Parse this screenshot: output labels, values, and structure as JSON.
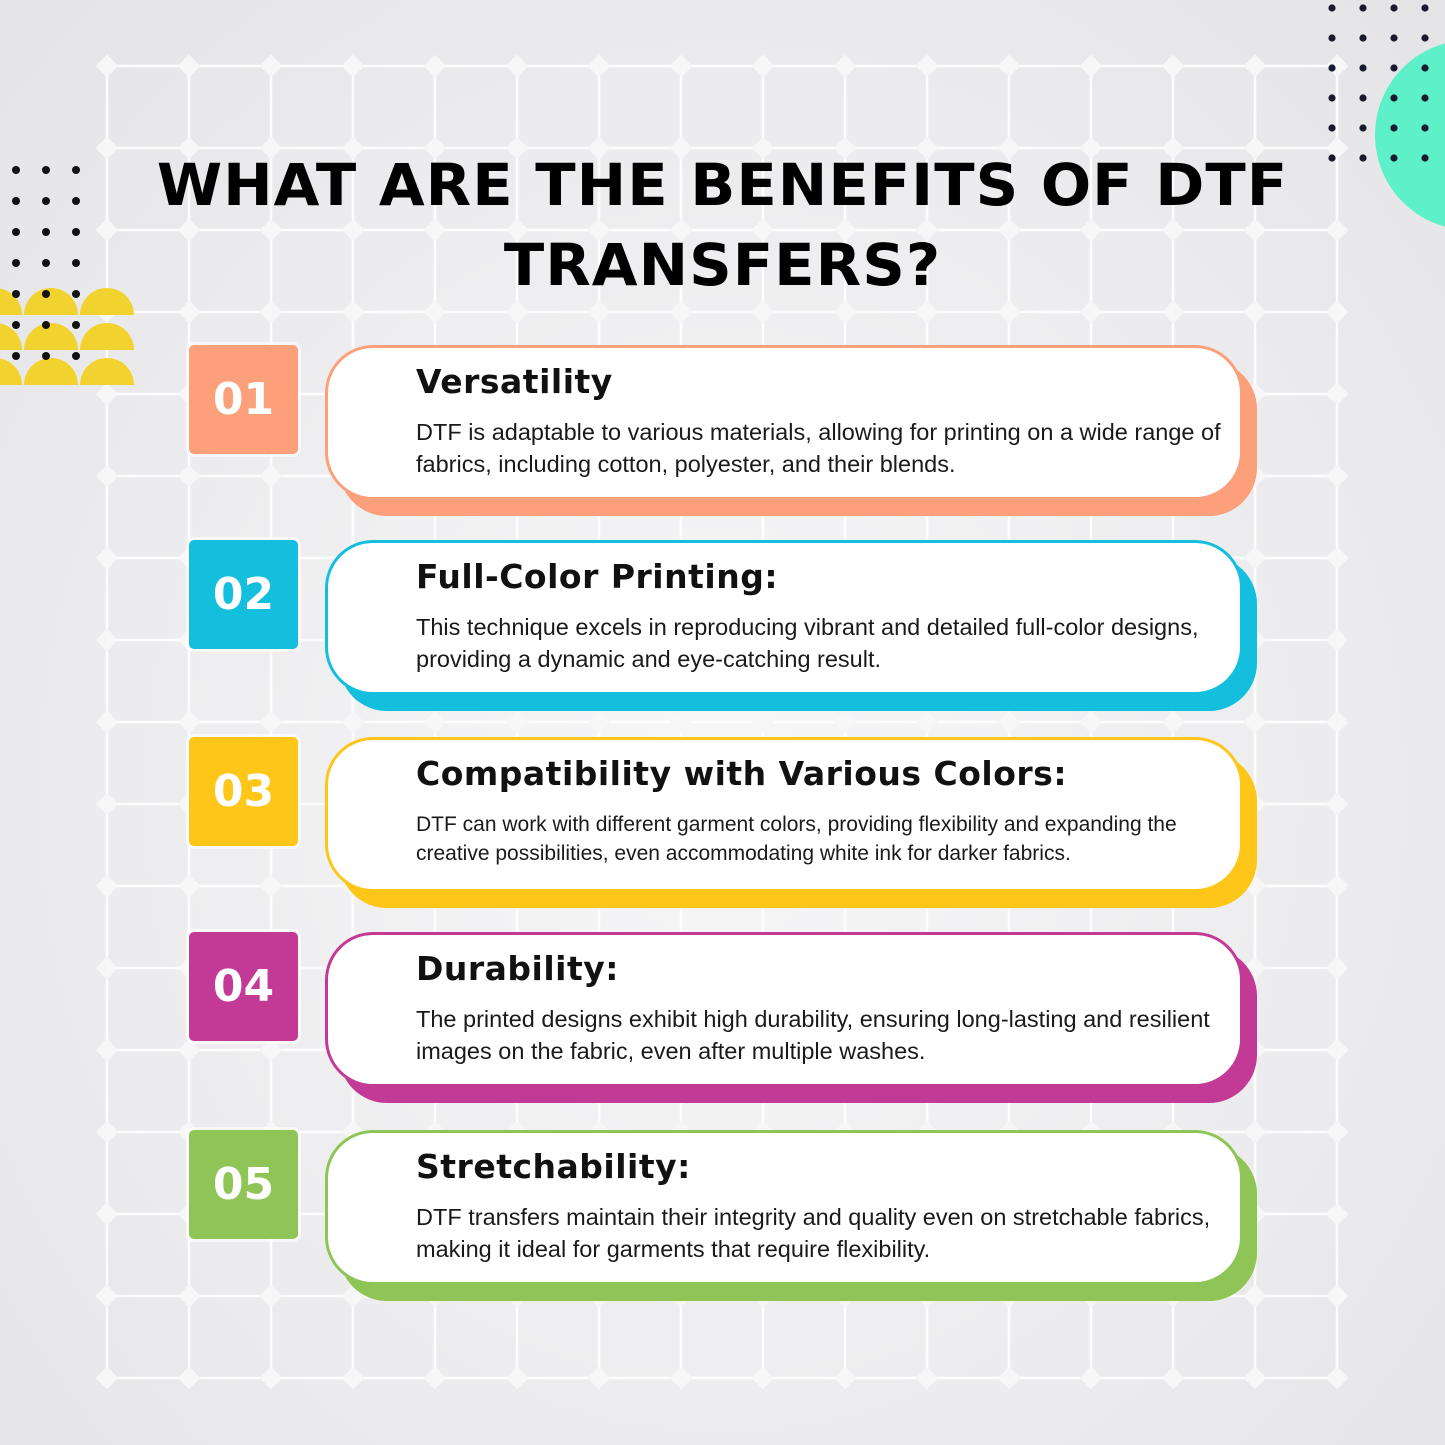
{
  "title": "WHAT ARE THE BENEFITS OF DTF TRANSFERS?",
  "colors": {
    "background": "#ececee",
    "grid": "#ffffff",
    "accent_teal": "#5ef0c8",
    "accent_yellow": "#f2d22e"
  },
  "items": [
    {
      "number": "01",
      "heading": "Versatility",
      "text": "DTF is adaptable to various materials, allowing for printing on a wide range of fabrics, including cotton, polyester, and their blends.",
      "color": "#fba07a"
    },
    {
      "number": "02",
      "heading": "Full-Color Printing:",
      "text": "This technique excels in reproducing vibrant and detailed full-color designs, providing a dynamic and eye-catching result.",
      "color": "#14bfde"
    },
    {
      "number": "03",
      "heading": "Compatibility with Various Colors:",
      "text": "DTF can work with different garment colors, providing flexibility and expanding the creative possibilities, even accommodating white ink for darker fabrics.",
      "color": "#fdc619"
    },
    {
      "number": "04",
      "heading": "Durability:",
      "text": "The printed designs exhibit high durability, ensuring long-lasting and resilient images on the fabric, even after multiple washes.",
      "color": "#c23a96"
    },
    {
      "number": "05",
      "heading": "Stretchability:",
      "text": "DTF transfers maintain their integrity and quality even on stretchable fabrics, making it ideal for garments that require flexibility.",
      "color": "#8fc457"
    }
  ]
}
